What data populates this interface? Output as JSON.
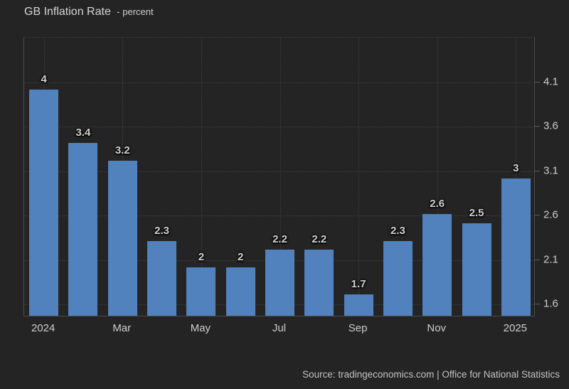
{
  "header": {
    "title": "GB Inflation Rate",
    "subtitle": "- percent"
  },
  "footer": {
    "source": "Source: tradingeconomics.com | Office for National Statistics"
  },
  "colors": {
    "background": "#242424",
    "bar": "#5282bd",
    "grid": "#3e3e3e",
    "axis": "#4a4a4a",
    "text": "#cdcdcd"
  },
  "chart_data": {
    "type": "bar",
    "title": "GB Inflation Rate - percent",
    "values": [
      4,
      3.4,
      3.2,
      2.3,
      2,
      2,
      2.2,
      2.2,
      1.7,
      2.3,
      2.6,
      2.5,
      3
    ],
    "bar_labels": [
      "4",
      "3.4",
      "3.2",
      "2.3",
      "2",
      "2",
      "2.2",
      "2.2",
      "1.7",
      "2.3",
      "2.6",
      "2.5",
      "3"
    ],
    "x_tick_labels": [
      "2024",
      "Mar",
      "May",
      "Jul",
      "Sep",
      "Nov",
      "2025"
    ],
    "x_tick_bar_indices": [
      0,
      2,
      4,
      6,
      8,
      10,
      12
    ],
    "y_tick_labels": [
      "1.6",
      "2.1",
      "2.6",
      "3.1",
      "3.6",
      "4.1"
    ],
    "y_ticks": [
      1.6,
      2.1,
      2.6,
      3.1,
      3.6,
      4.1
    ],
    "ylim": [
      1.46,
      4.6
    ],
    "y_axis_side": "right",
    "grid": "dotted",
    "legend": "none",
    "bar_color": "#5282bd"
  }
}
